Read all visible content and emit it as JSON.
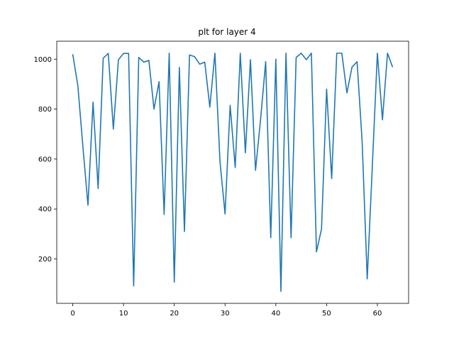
{
  "chart_data": {
    "type": "line",
    "title": "plt for layer 4",
    "xlabel": "",
    "ylabel": "",
    "xlim": [
      -3.15,
      66.15
    ],
    "ylim": [
      22,
      1072
    ],
    "xticks": [
      0,
      10,
      20,
      30,
      40,
      50,
      60
    ],
    "yticks": [
      200,
      400,
      600,
      800,
      1000
    ],
    "grid": false,
    "line_color": "#1f77b4",
    "x": [
      0,
      1,
      2,
      3,
      4,
      5,
      6,
      7,
      8,
      9,
      10,
      11,
      12,
      13,
      14,
      15,
      16,
      17,
      18,
      19,
      20,
      21,
      22,
      23,
      24,
      25,
      26,
      27,
      28,
      29,
      30,
      31,
      32,
      33,
      34,
      35,
      36,
      37,
      38,
      39,
      40,
      41,
      42,
      43,
      44,
      45,
      46,
      47,
      48,
      49,
      50,
      51,
      52,
      53,
      54,
      55,
      56,
      57,
      58,
      59,
      60,
      61,
      62,
      63
    ],
    "series": [
      {
        "values": [
          1020,
          895,
          650,
          415,
          828,
          482,
          1004,
          1023,
          720,
          998,
          1023,
          1023,
          92,
          1007,
          988,
          995,
          800,
          910,
          378,
          1024,
          107,
          967,
          310,
          1017,
          1010,
          980,
          988,
          808,
          1024,
          590,
          380,
          815,
          566,
          1024,
          625,
          998,
          555,
          760,
          990,
          285,
          1000,
          70,
          1024,
          285,
          1007,
          1024,
          998,
          1024,
          228,
          320,
          880,
          522,
          1024,
          1024,
          865,
          968,
          990,
          670,
          120,
          570,
          1024,
          757,
          1024,
          968
        ]
      }
    ]
  }
}
